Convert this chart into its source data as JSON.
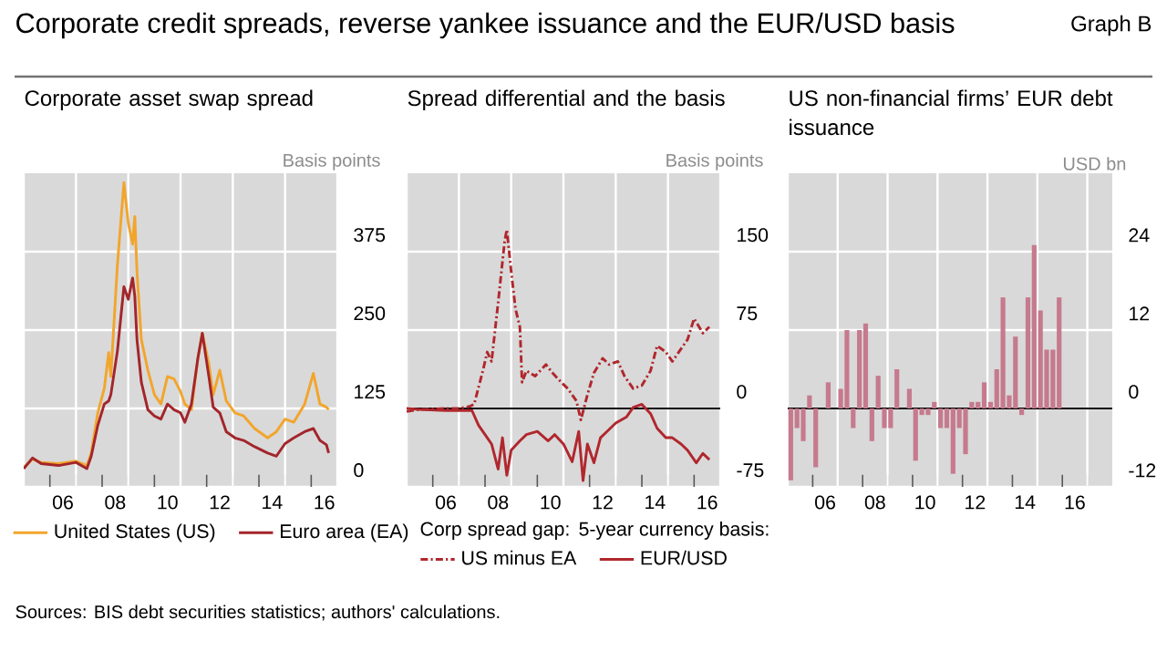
{
  "chart_data": [
    {
      "type": "line",
      "title": "Corporate asset swap spread",
      "ylabel": "Basis points",
      "annotations": [
        "Corporate credit spreads, reverse yankee issuance and the EUR/USD basis",
        "Graph B"
      ],
      "xlim": [
        "2005-01",
        "2017-01"
      ],
      "ylim": [
        0,
        500
      ],
      "yticks": [
        0,
        125,
        250,
        375
      ],
      "xticks": [
        {
          "value": "2005-01",
          "label": null
        },
        {
          "value": "2006-01",
          "label": null
        },
        {
          "value": "2007-01",
          "label": null
        },
        {
          "value": "2008-01",
          "label": null
        },
        {
          "value": "2009-01",
          "label": null
        },
        {
          "value": "2010-01",
          "label": null
        },
        {
          "value": "2011-01",
          "label": null
        },
        {
          "value": "2012-01",
          "label": null
        },
        {
          "value": "2013-01",
          "label": null
        },
        {
          "value": "2014-01",
          "label": null
        },
        {
          "value": "2015-01",
          "label": null
        },
        {
          "value": "2016-01",
          "label": null
        },
        {
          "value": "2017-01",
          "label": null
        },
        {
          "value": "2006-07",
          "label": "06"
        },
        {
          "value": "2008-07",
          "label": "08"
        },
        {
          "value": "2010-07",
          "label": "10"
        },
        {
          "value": "2012-07",
          "label": "12"
        },
        {
          "value": "2014-07",
          "label": "14"
        },
        {
          "value": "2016-07",
          "label": "16"
        }
      ],
      "grid": true,
      "legend": "bottom",
      "series": [
        {
          "name": "United States (US)",
          "color": "#f2a52c",
          "x": [
            "2005-01",
            "2005-05",
            "2005-09",
            "2006-05",
            "2007-01",
            "2007-06",
            "2007-08",
            "2007-11",
            "2008-02",
            "2008-04",
            "2008-05",
            "2008-08",
            "2008-11",
            "2009-01",
            "2009-03",
            "2009-04",
            "2009-05",
            "2009-07",
            "2009-10",
            "2010-01",
            "2010-04",
            "2010-07",
            "2010-10",
            "2011-01",
            "2011-03",
            "2011-06",
            "2011-09",
            "2011-11",
            "2012-02",
            "2012-04",
            "2012-07",
            "2012-10",
            "2013-02",
            "2013-06",
            "2013-11",
            "2014-05",
            "2014-09",
            "2015-01",
            "2015-05",
            "2015-10",
            "2016-02",
            "2016-05",
            "2016-08",
            "2016-09"
          ],
          "values": [
            31,
            44,
            39,
            37,
            41,
            34,
            54,
            118,
            157,
            214,
            176,
            353,
            485,
            421,
            387,
            431,
            343,
            235,
            186,
            147,
            132,
            176,
            172,
            152,
            132,
            123,
            206,
            245,
            196,
            147,
            186,
            137,
            118,
            113,
            93,
            78,
            88,
            108,
            103,
            132,
            181,
            132,
            127,
            123
          ]
        },
        {
          "name": "Euro area (EA)",
          "color": "#a3252b",
          "x": [
            "2005-01",
            "2005-05",
            "2005-09",
            "2006-05",
            "2007-01",
            "2007-06",
            "2007-08",
            "2007-11",
            "2008-02",
            "2008-04",
            "2008-05",
            "2008-08",
            "2008-11",
            "2009-01",
            "2009-03",
            "2009-04",
            "2009-05",
            "2009-07",
            "2009-10",
            "2010-01",
            "2010-04",
            "2010-07",
            "2010-10",
            "2011-01",
            "2011-03",
            "2011-06",
            "2011-09",
            "2011-11",
            "2012-02",
            "2012-04",
            "2012-07",
            "2012-10",
            "2013-02",
            "2013-06",
            "2013-11",
            "2014-05",
            "2014-09",
            "2015-01",
            "2015-05",
            "2015-10",
            "2016-02",
            "2016-05",
            "2016-08",
            "2016-09"
          ],
          "values": [
            29,
            46,
            37,
            34,
            39,
            29,
            49,
            98,
            132,
            137,
            147,
            216,
            319,
            299,
            333,
            304,
            235,
            167,
            123,
            113,
            108,
            132,
            123,
            118,
            103,
            132,
            206,
            245,
            176,
            127,
            118,
            88,
            78,
            74,
            64,
            54,
            49,
            69,
            78,
            88,
            93,
            74,
            67,
            54
          ]
        }
      ]
    },
    {
      "type": "line",
      "title": "Spread differential and the basis",
      "ylabel": "Basis points",
      "annotations": [
        "Corp spread gap:",
        "5-year currency basis:"
      ],
      "xlim": [
        "2005-01",
        "2017-01"
      ],
      "ylim": [
        -75,
        225
      ],
      "yticks": [
        -75,
        0,
        75,
        150
      ],
      "xticks": [
        {
          "value": "2005-01",
          "label": null
        },
        {
          "value": "2006-01",
          "label": null
        },
        {
          "value": "2007-01",
          "label": null
        },
        {
          "value": "2008-01",
          "label": null
        },
        {
          "value": "2009-01",
          "label": null
        },
        {
          "value": "2010-01",
          "label": null
        },
        {
          "value": "2011-01",
          "label": null
        },
        {
          "value": "2012-01",
          "label": null
        },
        {
          "value": "2013-01",
          "label": null
        },
        {
          "value": "2014-01",
          "label": null
        },
        {
          "value": "2015-01",
          "label": null
        },
        {
          "value": "2016-01",
          "label": null
        },
        {
          "value": "2017-01",
          "label": null
        },
        {
          "value": "2006-07",
          "label": "06"
        },
        {
          "value": "2008-07",
          "label": "08"
        },
        {
          "value": "2010-07",
          "label": "10"
        },
        {
          "value": "2012-07",
          "label": "12"
        },
        {
          "value": "2014-07",
          "label": "14"
        },
        {
          "value": "2016-07",
          "label": "16"
        }
      ],
      "grid": true,
      "legend": "bottom",
      "ref_lines": [
        {
          "axis": "y",
          "value": 0
        }
      ],
      "series": [
        {
          "name": "US minus EA",
          "color": "#b0272d",
          "line_style": "dashed",
          "x": [
            "2005-01",
            "2005-07",
            "2006-07",
            "2007-01",
            "2007-06",
            "2007-08",
            "2007-12",
            "2008-02",
            "2008-04",
            "2008-07",
            "2008-10",
            "2008-11",
            "2009-01",
            "2009-03",
            "2009-05",
            "2009-06",
            "2009-08",
            "2009-12",
            "2010-05",
            "2010-08",
            "2010-12",
            "2011-03",
            "2011-07",
            "2011-09",
            "2011-12",
            "2012-03",
            "2012-07",
            "2012-10",
            "2013-02",
            "2013-05",
            "2013-09",
            "2014-01",
            "2014-05",
            "2014-08",
            "2014-12",
            "2015-03",
            "2015-07",
            "2015-10",
            "2016-01",
            "2016-05",
            "2016-08"
          ],
          "values": [
            -3,
            -1,
            0,
            0,
            2,
            4,
            36,
            54,
            45,
            101,
            160,
            171,
            131,
            95,
            78,
            25,
            36,
            31,
            42,
            34,
            25,
            19,
            7,
            -11,
            13,
            34,
            48,
            42,
            45,
            31,
            19,
            22,
            36,
            60,
            54,
            45,
            57,
            66,
            86,
            72,
            78
          ]
        },
        {
          "name": "EUR/USD",
          "color": "#b0272d",
          "line_style": "solid",
          "x": [
            "2005-01",
            "2005-07",
            "2006-07",
            "2007-03",
            "2007-07",
            "2007-10",
            "2008-02",
            "2008-04",
            "2008-07",
            "2008-09",
            "2008-11",
            "2009-01",
            "2009-05",
            "2009-08",
            "2010-01",
            "2010-06",
            "2010-09",
            "2011-01",
            "2011-05",
            "2011-08",
            "2011-10",
            "2011-12",
            "2012-03",
            "2012-06",
            "2012-09",
            "2013-01",
            "2013-06",
            "2013-09",
            "2014-01",
            "2014-05",
            "2014-08",
            "2014-12",
            "2015-03",
            "2015-07",
            "2015-10",
            "2016-02",
            "2016-05",
            "2016-08"
          ],
          "values": [
            0,
            -1,
            -2,
            -2,
            -2,
            -16,
            -28,
            -34,
            -58,
            -28,
            -64,
            -40,
            -31,
            -25,
            -22,
            -31,
            -25,
            -34,
            -51,
            -22,
            -69,
            -34,
            -52,
            -28,
            -22,
            -14,
            -8,
            1,
            4,
            -5,
            -19,
            -28,
            -28,
            -34,
            -40,
            -52,
            -43,
            -49
          ]
        }
      ]
    },
    {
      "type": "bar",
      "title": "US non-financial firms’ EUR debt issuance",
      "ylabel": "USD bn",
      "annotations": [
        "Sources: BIS debt securities statistics; authors' calculations."
      ],
      "xlim": [
        "2005-01",
        "2018-01"
      ],
      "ylim": [
        -12,
        36
      ],
      "yticks": [
        -12,
        0,
        12,
        24
      ],
      "xticks": [
        {
          "value": "2005-01",
          "label": null
        },
        {
          "value": "2006-01",
          "label": null
        },
        {
          "value": "2007-01",
          "label": null
        },
        {
          "value": "2008-01",
          "label": null
        },
        {
          "value": "2009-01",
          "label": null
        },
        {
          "value": "2010-01",
          "label": null
        },
        {
          "value": "2011-01",
          "label": null
        },
        {
          "value": "2012-01",
          "label": null
        },
        {
          "value": "2013-01",
          "label": null
        },
        {
          "value": "2014-01",
          "label": null
        },
        {
          "value": "2015-01",
          "label": null
        },
        {
          "value": "2016-01",
          "label": null
        },
        {
          "value": "2017-01",
          "label": null
        },
        {
          "value": "2006-07",
          "label": "06"
        },
        {
          "value": "2008-07",
          "label": "08"
        },
        {
          "value": "2010-07",
          "label": "10"
        },
        {
          "value": "2012-07",
          "label": "12"
        },
        {
          "value": "2014-07",
          "label": "14"
        },
        {
          "value": "2016-07",
          "label": "16"
        }
      ],
      "grid": true,
      "ref_lines": [
        {
          "axis": "y",
          "value": 0
        }
      ],
      "color": "#c67a8d",
      "x": [
        "2005-02-15",
        "2005-05-15",
        "2005-08-15",
        "2005-11-15",
        "2006-02-15",
        "2006-05-15",
        "2006-08-15",
        "2006-11-15",
        "2007-02-15",
        "2007-05-15",
        "2007-08-15",
        "2007-11-15",
        "2008-02-15",
        "2008-05-15",
        "2008-08-15",
        "2008-11-15",
        "2009-02-15",
        "2009-05-15",
        "2009-08-15",
        "2009-11-15",
        "2010-02-15",
        "2010-05-15",
        "2010-08-15",
        "2010-11-15",
        "2011-02-15",
        "2011-05-15",
        "2011-08-15",
        "2011-11-15",
        "2012-02-15",
        "2012-05-15",
        "2012-08-15",
        "2012-11-15",
        "2013-02-15",
        "2013-05-15",
        "2013-08-15",
        "2013-11-15",
        "2014-02-15",
        "2014-05-15",
        "2014-08-15",
        "2014-11-15",
        "2015-02-15",
        "2015-05-15",
        "2015-08-15",
        "2015-11-15"
      ],
      "values": [
        -11,
        -3,
        -5,
        2,
        -9,
        0,
        4,
        0,
        3,
        12,
        -3,
        12,
        13,
        -5,
        5,
        -3,
        -3,
        6,
        0,
        3,
        -8,
        -1,
        -1,
        1,
        -3,
        -3,
        -10,
        -3,
        -7,
        1,
        1,
        4,
        1,
        6,
        17,
        2,
        11,
        -1,
        17,
        25,
        15,
        9,
        9,
        17
      ]
    }
  ]
}
